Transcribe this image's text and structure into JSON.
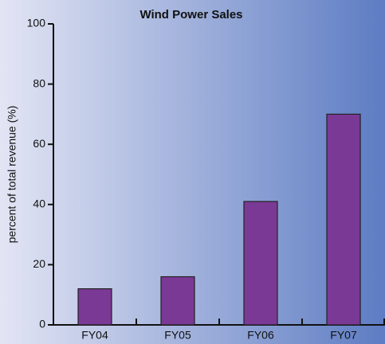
{
  "chart_data": {
    "type": "bar",
    "title": "Wind Power Sales",
    "y_label": "percent of total revenue (%)",
    "categories": [
      "FY04",
      "FY05",
      "FY06",
      "FY07"
    ],
    "values": [
      12,
      16,
      41,
      70
    ],
    "color": "#7b3996",
    "ylim": [
      0,
      100
    ],
    "yticks": [
      0,
      20,
      40,
      60,
      80,
      100
    ]
  }
}
